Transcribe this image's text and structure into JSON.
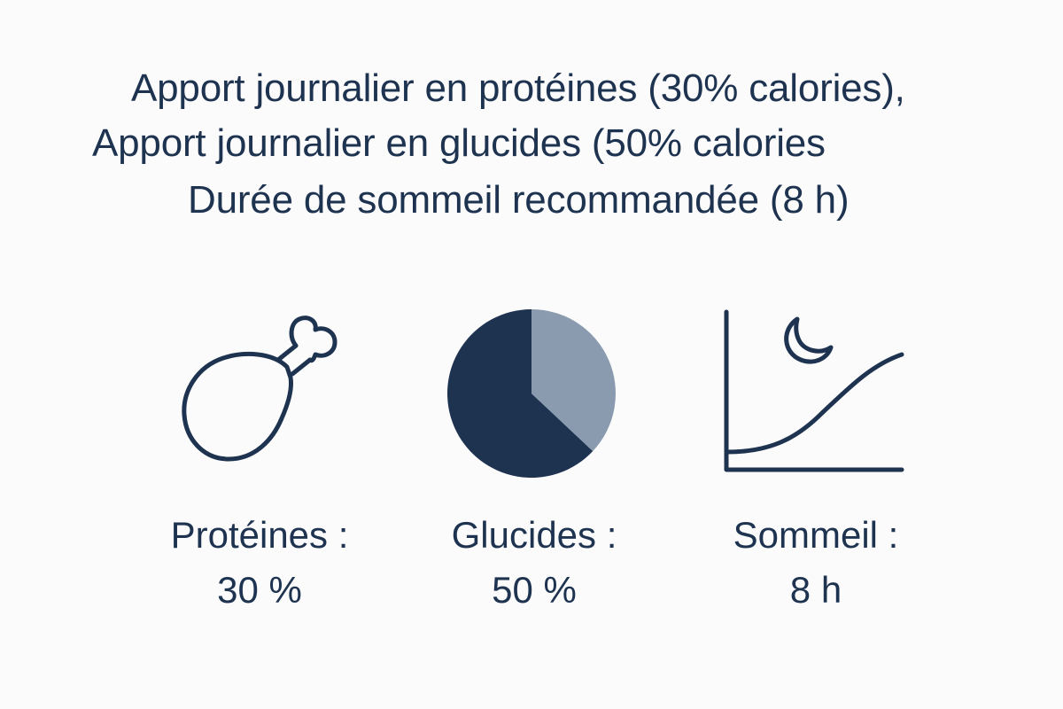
{
  "title_lines": [
    "Apport journalier en protéines (30% calories),",
    "Apport journalier en glucides (50% calories",
    "Durée de sommeil recommandée (8 h)"
  ],
  "icons": {
    "protein": "drumstick-icon",
    "carbs": "pie-chart-icon",
    "sleep": "sleep-curve-moon-icon"
  },
  "pie_icon": {
    "dark_fraction": 0.63,
    "light_fraction": 0.37
  },
  "colors": {
    "text": "#1e3350",
    "icon_dark": "#1e3350",
    "icon_light": "#8a9bb0",
    "background": "#fbfbfc"
  },
  "stats": [
    {
      "label": "Protéines :",
      "value": "30 %"
    },
    {
      "label": "Glucides :",
      "value": "50 %"
    },
    {
      "label": "Sommeil :",
      "value": "8 h"
    }
  ]
}
